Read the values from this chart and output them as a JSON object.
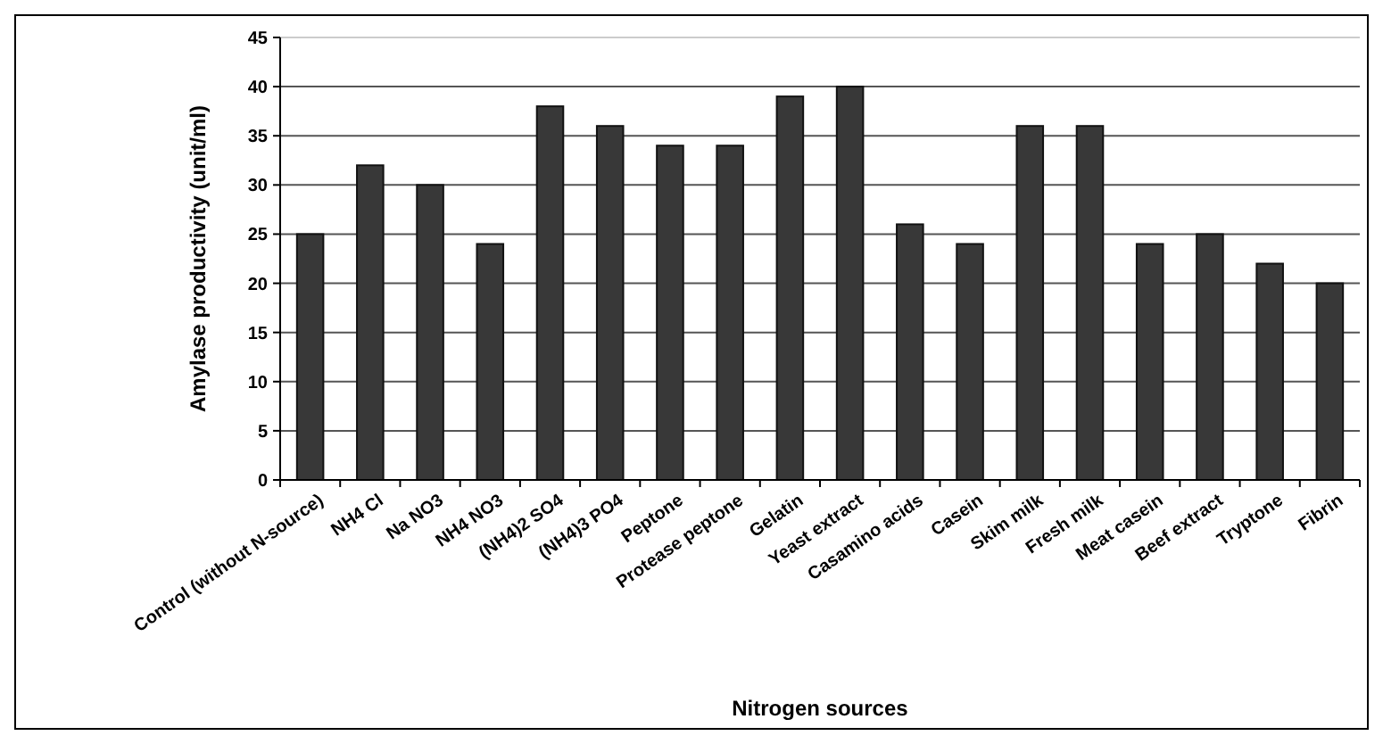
{
  "chart_data": {
    "type": "bar",
    "xlabel": "Nitrogen sources",
    "ylabel": "Amylase productivity (unit/ml)",
    "categories": [
      "Control (without N-source)",
      "NH4 Cl",
      "Na NO3",
      "NH4 NO3",
      "(NH4)2 SO4",
      "(NH4)3 PO4",
      "Peptone",
      "Protease peptone",
      "Gelatin",
      "Yeast extract",
      "Casamino acids",
      "Casein",
      "Skim milk",
      "Fresh milk",
      "Meat casein",
      "Beef extract",
      "Tryptone",
      "Fibrin"
    ],
    "values": [
      25,
      32,
      30,
      24,
      38,
      36,
      34,
      34,
      39,
      40,
      26,
      24,
      36,
      36,
      24,
      25,
      22,
      20
    ],
    "color": "#383838",
    "ylim": [
      0,
      45
    ],
    "yticks": [
      0,
      5,
      10,
      15,
      20,
      25,
      30,
      35,
      40,
      45
    ],
    "grid": "y"
  }
}
